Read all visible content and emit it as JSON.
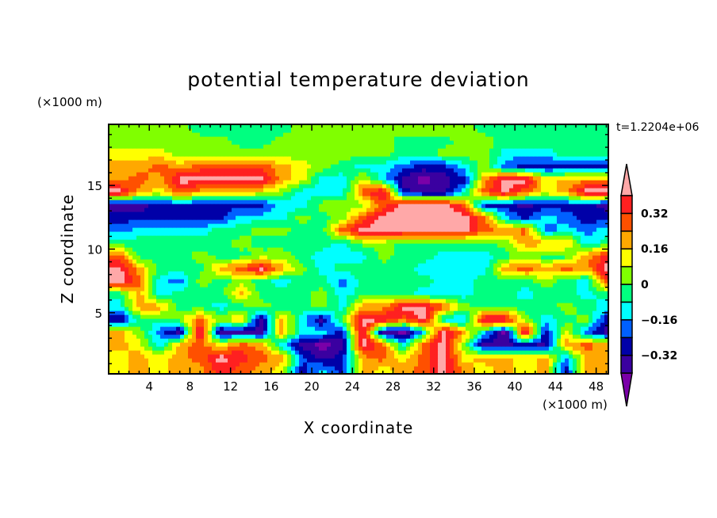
{
  "chart_data": {
    "type": "heatmap",
    "title": "potential temperature deviation",
    "xlabel": "X coordinate",
    "ylabel": "Z coordinate",
    "x_unit": "(×1000 m)",
    "y_unit": "(×1000 m)",
    "time_label": "t=1.2204e+06",
    "xlim": [
      0,
      49.2
    ],
    "ylim": [
      0.2,
      19.8
    ],
    "x_ticks": [
      "4",
      "8",
      "12",
      "16",
      "20",
      "24",
      "28",
      "32",
      "36",
      "40",
      "44",
      "48"
    ],
    "y_ticks": [
      "5",
      "10",
      "15"
    ],
    "x_tick_values": [
      4,
      8,
      12,
      16,
      20,
      24,
      28,
      32,
      36,
      40,
      44,
      48
    ],
    "y_tick_values": [
      5,
      10,
      15
    ],
    "contour_levels": [
      -0.4,
      -0.32,
      -0.24,
      -0.16,
      -0.08,
      0,
      0.08,
      0.16,
      0.24,
      0.32,
      0.4
    ],
    "colors": [
      "#7a00a8",
      "#3a00a0",
      "#0000a8",
      "#0060ff",
      "#00ffff",
      "#00ff80",
      "#80ff00",
      "#ffff00",
      "#ffa800",
      "#ff5000",
      "#ff2020",
      "#ffa8a8"
    ],
    "colorbar_labels": [
      "0.32",
      "0.16",
      "0",
      "-0.16",
      "-0.32"
    ],
    "colorbar_label_values": [
      0.32,
      0.16,
      0,
      -0.16,
      -0.32
    ],
    "grid_x": [
      1,
      3,
      5,
      7,
      9,
      11,
      13,
      15,
      17,
      19,
      21,
      23,
      25,
      27,
      29,
      31,
      33,
      35,
      37,
      39,
      41,
      43,
      45,
      47,
      49
    ],
    "grid_z": [
      19.5,
      18.5,
      17.5,
      16.5,
      15.5,
      14.5,
      13.5,
      12.5,
      11.5,
      10.5,
      9.5,
      8.5,
      7.5,
      6.5,
      5.5,
      4.5,
      3.5,
      2.5,
      1.5,
      0.5
    ],
    "values": [
      [
        0.04,
        0.04,
        0.04,
        0.04,
        -0.04,
        -0.04,
        -0.04,
        -0.04,
        -0.04,
        0.04,
        0.04,
        0.04,
        0.04,
        0.04,
        0.04,
        0.04,
        0.04,
        0.04,
        -0.04,
        -0.04,
        -0.04,
        -0.04,
        -0.04,
        -0.04,
        -0.04
      ],
      [
        0.04,
        0.04,
        0.04,
        0.04,
        0.04,
        0.04,
        -0.04,
        -0.04,
        0.04,
        0.04,
        0.04,
        0.04,
        0.04,
        0.04,
        -0.04,
        -0.04,
        -0.04,
        0.04,
        0.04,
        -0.04,
        -0.04,
        -0.04,
        -0.04,
        -0.04,
        -0.04
      ],
      [
        0.12,
        0.12,
        0.12,
        0.04,
        0.04,
        0.04,
        0.04,
        0.04,
        0.04,
        0.04,
        0.04,
        0.04,
        0.04,
        0.04,
        -0.04,
        -0.04,
        0.04,
        0.04,
        0.04,
        -0.12,
        -0.12,
        -0.12,
        -0.04,
        -0.04,
        -0.04
      ],
      [
        0.2,
        0.2,
        0.28,
        0.2,
        0.28,
        0.28,
        0.28,
        0.28,
        0.2,
        0.12,
        0.04,
        -0.04,
        -0.12,
        -0.12,
        -0.2,
        -0.28,
        -0.28,
        -0.12,
        0.04,
        -0.2,
        -0.28,
        -0.28,
        -0.28,
        -0.28,
        -0.28
      ],
      [
        0.2,
        0.28,
        0.2,
        0.44,
        0.44,
        0.44,
        0.44,
        0.44,
        0.2,
        0.12,
        -0.12,
        -0.12,
        0.12,
        -0.12,
        -0.36,
        -0.44,
        -0.36,
        -0.28,
        0.2,
        0.44,
        0.44,
        0.12,
        0.2,
        0.2,
        0.2
      ],
      [
        0.44,
        0.2,
        0.12,
        0.28,
        0.2,
        0.2,
        0.2,
        0.12,
        0.04,
        -0.12,
        -0.12,
        -0.12,
        0.28,
        0.44,
        -0.28,
        -0.36,
        -0.36,
        -0.12,
        0.28,
        0.44,
        0.28,
        0.12,
        0.2,
        0.44,
        0.44
      ],
      [
        -0.36,
        -0.36,
        -0.28,
        -0.28,
        -0.28,
        -0.28,
        -0.28,
        -0.28,
        -0.12,
        -0.12,
        0.04,
        0.04,
        0.04,
        0.28,
        0.44,
        0.44,
        0.44,
        0.28,
        -0.28,
        -0.28,
        -0.36,
        -0.28,
        -0.28,
        -0.28,
        -0.36
      ],
      [
        -0.28,
        -0.28,
        -0.28,
        -0.28,
        -0.28,
        -0.28,
        -0.12,
        -0.12,
        -0.12,
        0.04,
        -0.04,
        0.04,
        0.28,
        0.44,
        0.44,
        0.44,
        0.44,
        0.44,
        0.28,
        -0.12,
        -0.28,
        -0.12,
        -0.2,
        -0.28,
        -0.28
      ],
      [
        -0.2,
        -0.12,
        -0.12,
        -0.12,
        -0.12,
        -0.04,
        -0.04,
        0.04,
        0.04,
        -0.04,
        -0.04,
        0.28,
        0.44,
        0.44,
        0.44,
        0.44,
        0.44,
        0.44,
        0.28,
        0.2,
        0.28,
        -0.2,
        -0.12,
        -0.2,
        -0.12
      ],
      [
        -0.04,
        -0.04,
        -0.04,
        -0.04,
        -0.04,
        -0.04,
        0.04,
        -0.04,
        -0.04,
        -0.04,
        -0.04,
        -0.12,
        0.04,
        0.04,
        -0.04,
        -0.04,
        -0.04,
        -0.04,
        -0.04,
        0.04,
        0.2,
        0.2,
        0.2,
        -0.12,
        -0.04
      ],
      [
        0.28,
        -0.04,
        -0.04,
        -0.04,
        0.04,
        -0.04,
        -0.04,
        0.04,
        0.04,
        -0.04,
        -0.12,
        -0.12,
        -0.12,
        0.04,
        -0.04,
        -0.04,
        -0.12,
        -0.12,
        -0.12,
        -0.04,
        0.04,
        -0.04,
        -0.04,
        0.2,
        0.36
      ],
      [
        0.44,
        0.2,
        -0.04,
        -0.04,
        -0.04,
        0.2,
        0.28,
        0.44,
        0.2,
        0.04,
        -0.12,
        -0.04,
        -0.04,
        -0.04,
        -0.04,
        -0.12,
        -0.12,
        -0.12,
        -0.12,
        0.2,
        0.28,
        0.2,
        0.28,
        0.2,
        0.44
      ],
      [
        0.44,
        0.28,
        -0.12,
        -0.2,
        0.04,
        -0.04,
        0.04,
        -0.04,
        -0.12,
        -0.04,
        -0.04,
        -0.2,
        -0.04,
        -0.04,
        -0.04,
        -0.04,
        -0.12,
        -0.12,
        -0.04,
        -0.04,
        -0.04,
        0.04,
        -0.04,
        -0.12,
        0.28
      ],
      [
        -0.04,
        0.2,
        -0.12,
        -0.04,
        -0.04,
        -0.04,
        0.2,
        -0.04,
        -0.04,
        -0.04,
        0.04,
        -0.12,
        -0.04,
        -0.04,
        -0.04,
        -0.12,
        -0.12,
        -0.12,
        -0.04,
        -0.04,
        -0.12,
        -0.04,
        -0.04,
        -0.12,
        -0.04
      ],
      [
        -0.12,
        0.2,
        0.2,
        -0.04,
        -0.04,
        -0.12,
        -0.04,
        0.04,
        -0.04,
        -0.04,
        0.04,
        -0.12,
        0.2,
        0.2,
        0.44,
        0.44,
        0.28,
        0.04,
        -0.04,
        -0.04,
        -0.04,
        -0.04,
        0.04,
        -0.04,
        -0.12
      ],
      [
        -0.36,
        -0.04,
        -0.04,
        0.04,
        0.28,
        0.04,
        0.2,
        -0.36,
        0.2,
        -0.12,
        -0.36,
        0.04,
        0.44,
        0.44,
        0.28,
        0.44,
        -0.12,
        -0.2,
        0.44,
        0.44,
        0.04,
        -0.12,
        -0.04,
        0.04,
        -0.28
      ],
      [
        0.2,
        0.04,
        -0.2,
        -0.36,
        0.44,
        -0.36,
        -0.36,
        -0.36,
        0.2,
        -0.12,
        -0.12,
        -0.28,
        0.44,
        -0.36,
        -0.44,
        -0.12,
        0.44,
        0.2,
        -0.12,
        -0.44,
        0.44,
        -0.28,
        0.12,
        -0.2,
        -0.36
      ],
      [
        0.2,
        0.12,
        -0.12,
        0.2,
        0.28,
        0.12,
        0.28,
        0.2,
        -0.12,
        -0.36,
        -0.44,
        -0.36,
        0.44,
        0.28,
        -0.12,
        0.28,
        0.44,
        0.04,
        -0.36,
        -0.36,
        -0.28,
        -0.36,
        0.2,
        0.28,
        0.2
      ],
      [
        0.12,
        0.2,
        0.12,
        0.2,
        0.28,
        0.44,
        0.36,
        0.28,
        0.2,
        -0.2,
        -0.36,
        -0.28,
        0.2,
        0.28,
        0.12,
        0.28,
        0.44,
        0.12,
        0.2,
        0.2,
        0.12,
        0.2,
        -0.2,
        0.2,
        0.2
      ],
      [
        0.12,
        0.2,
        0.12,
        0.2,
        0.2,
        0.36,
        0.28,
        0.2,
        0.12,
        -0.28,
        -0.12,
        -0.28,
        0.2,
        0.12,
        0.2,
        0.28,
        0.44,
        0.2,
        0.12,
        0.2,
        0.12,
        0.2,
        -0.28,
        0.2,
        0.2
      ]
    ]
  }
}
